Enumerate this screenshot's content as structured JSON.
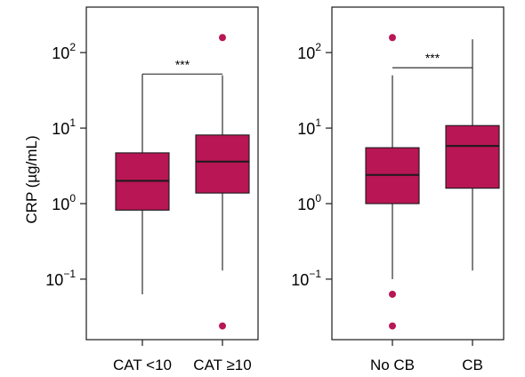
{
  "chart_data": [
    {
      "type": "boxplot",
      "ylabel": "CRP (µg/mL)",
      "y_scale": "log10",
      "ylim": [
        0.0158,
        400
      ],
      "y_ticks": [
        {
          "value": 0.1,
          "base": "10",
          "exp": "−1"
        },
        {
          "value": 1,
          "base": "10",
          "exp": "0"
        },
        {
          "value": 10,
          "base": "10",
          "exp": "1"
        },
        {
          "value": 100,
          "base": "10",
          "exp": "2"
        }
      ],
      "categories": [
        "CAT <10",
        "CAT ≥10"
      ],
      "boxes": [
        {
          "whisker_low": 0.063,
          "q1": 0.82,
          "median": 2.0,
          "q3": 4.7,
          "whisker_high": 52,
          "outliers": []
        },
        {
          "whisker_low": 0.13,
          "q1": 1.38,
          "median": 3.6,
          "q3": 8.1,
          "whisker_high": 50,
          "outliers": [
            158,
            0.024
          ]
        }
      ],
      "significance": {
        "label": "***",
        "y": 52
      }
    },
    {
      "type": "boxplot",
      "ylabel": "",
      "y_scale": "log10",
      "ylim": [
        0.0158,
        400
      ],
      "y_ticks": [
        {
          "value": 0.1,
          "base": "10",
          "exp": "−1"
        },
        {
          "value": 1,
          "base": "10",
          "exp": "0"
        },
        {
          "value": 10,
          "base": "10",
          "exp": "1"
        },
        {
          "value": 100,
          "base": "10",
          "exp": "2"
        }
      ],
      "categories": [
        "No CB",
        "CB"
      ],
      "boxes": [
        {
          "whisker_low": 0.1,
          "q1": 1.0,
          "median": 2.4,
          "q3": 5.5,
          "whisker_high": 50,
          "outliers": [
            158,
            0.063,
            0.024
          ]
        },
        {
          "whisker_low": 0.13,
          "q1": 1.6,
          "median": 5.8,
          "q3": 10.8,
          "whisker_high": 150,
          "outliers": []
        }
      ],
      "significance": {
        "label": "***",
        "y": 63
      }
    }
  ],
  "colors": {
    "box_fill": "#b81655",
    "outlier": "#b81655",
    "stroke": "#1a1a1a"
  }
}
